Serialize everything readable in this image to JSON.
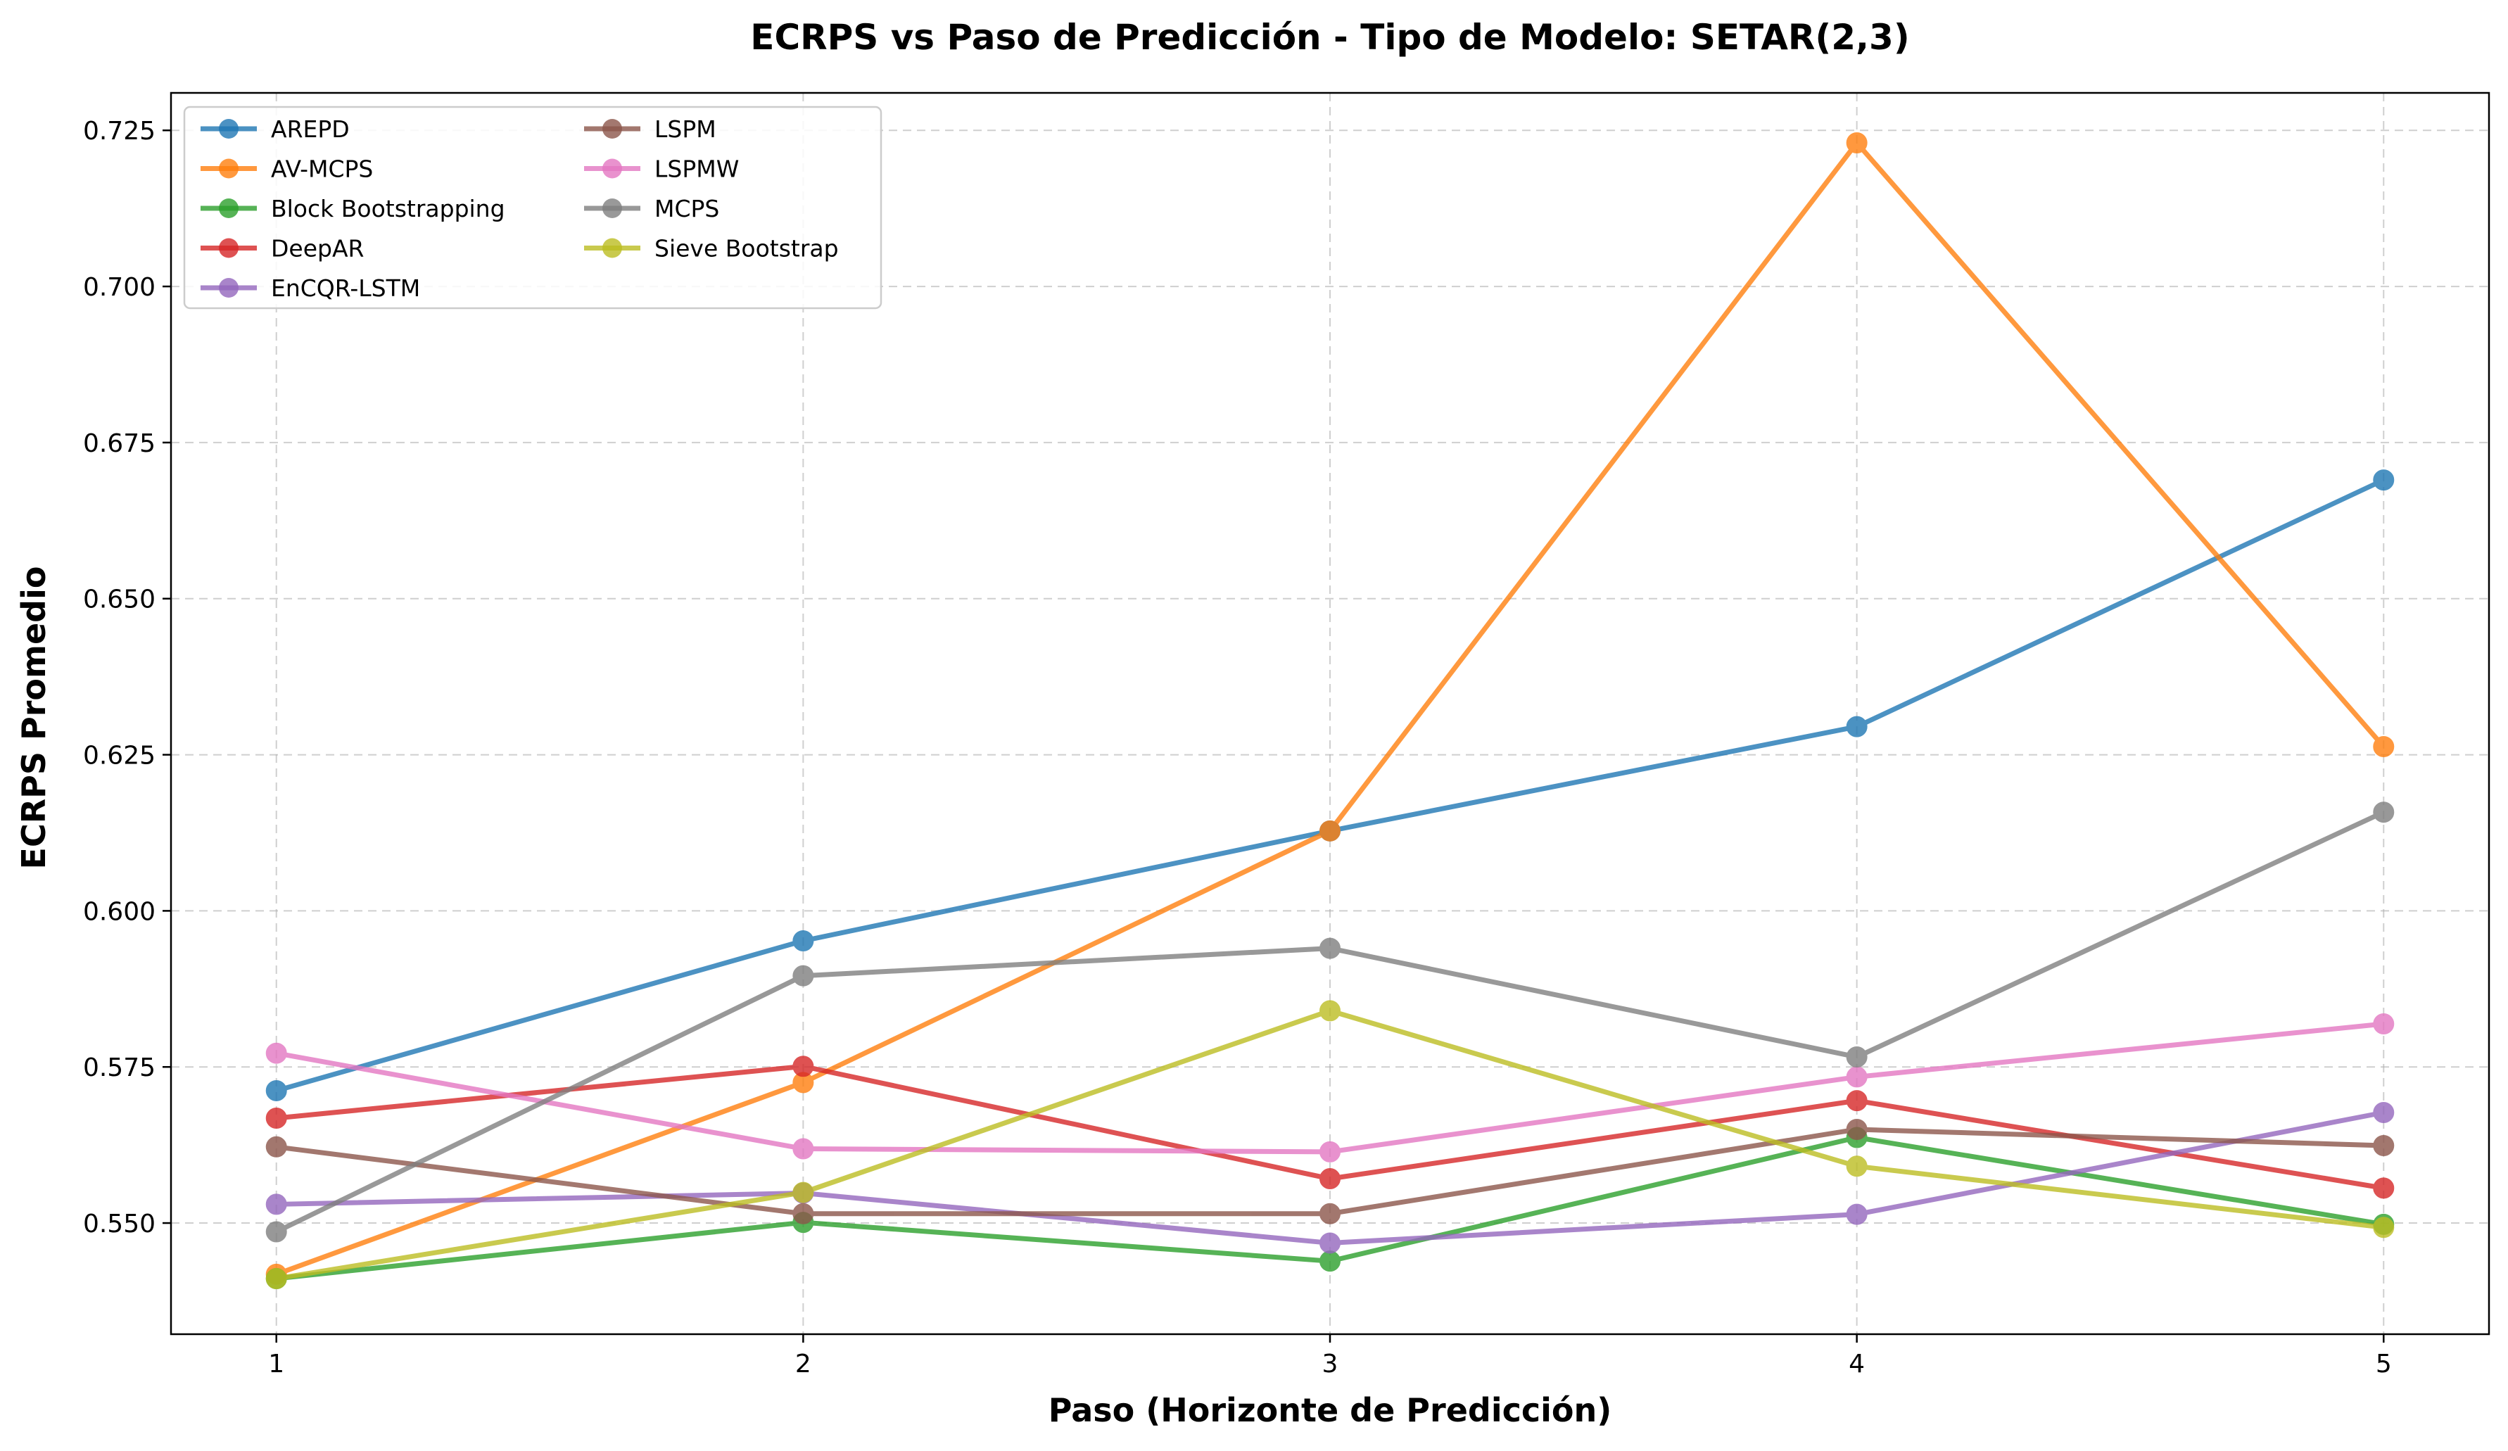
{
  "chart_data": {
    "type": "line",
    "title": "ECRPS vs Paso de Predicción - Tipo de Modelo: SETAR(2,3)",
    "xlabel": "Paso (Horizonte de Predicción)",
    "ylabel": "ECRPS Promedio",
    "x": [
      1,
      2,
      3,
      4,
      5
    ],
    "x_tick_labels": [
      "1",
      "2",
      "3",
      "4",
      "5"
    ],
    "xlim": [
      0.8,
      5.2
    ],
    "ylim": [
      0.5322,
      0.731
    ],
    "y_ticks": [
      0.55,
      0.575,
      0.6,
      0.625,
      0.65,
      0.675,
      0.7,
      0.725
    ],
    "y_tick_labels": [
      "0.550",
      "0.575",
      "0.600",
      "0.625",
      "0.650",
      "0.675",
      "0.700",
      "0.725"
    ],
    "grid": true,
    "legend_position": "top-left",
    "series": [
      {
        "name": "AREPD",
        "color": "#1f77b4",
        "values": [
          0.5712,
          0.5952,
          0.6128,
          0.6295,
          0.669
        ]
      },
      {
        "name": "AV-MCPS",
        "color": "#ff7f0e",
        "values": [
          0.5418,
          0.5725,
          0.6128,
          0.723,
          0.6263
        ]
      },
      {
        "name": "Block Bootstrapping",
        "color": "#2ca02c",
        "values": [
          0.5411,
          0.5501,
          0.5439,
          0.5637,
          0.5498
        ]
      },
      {
        "name": "DeepAR",
        "color": "#d62728",
        "values": [
          0.5668,
          0.5751,
          0.5571,
          0.5696,
          0.5556
        ]
      },
      {
        "name": "EnCQR-LSTM",
        "color": "#9467bd",
        "values": [
          0.553,
          0.5548,
          0.5468,
          0.5514,
          0.5677
        ]
      },
      {
        "name": "LSPM",
        "color": "#8c564b",
        "values": [
          0.5622,
          0.5515,
          0.5515,
          0.565,
          0.5624
        ]
      },
      {
        "name": "LSPMW",
        "color": "#e377c2",
        "values": [
          0.5772,
          0.5619,
          0.5614,
          0.5734,
          0.5819
        ]
      },
      {
        "name": "MCPS",
        "color": "#7f7f7f",
        "values": [
          0.5486,
          0.5896,
          0.594,
          0.5766,
          0.6158
        ]
      },
      {
        "name": "Sieve Bootstrap",
        "color": "#bcbd22",
        "values": [
          0.5411,
          0.5549,
          0.584,
          0.5591,
          0.5493
        ]
      }
    ]
  }
}
